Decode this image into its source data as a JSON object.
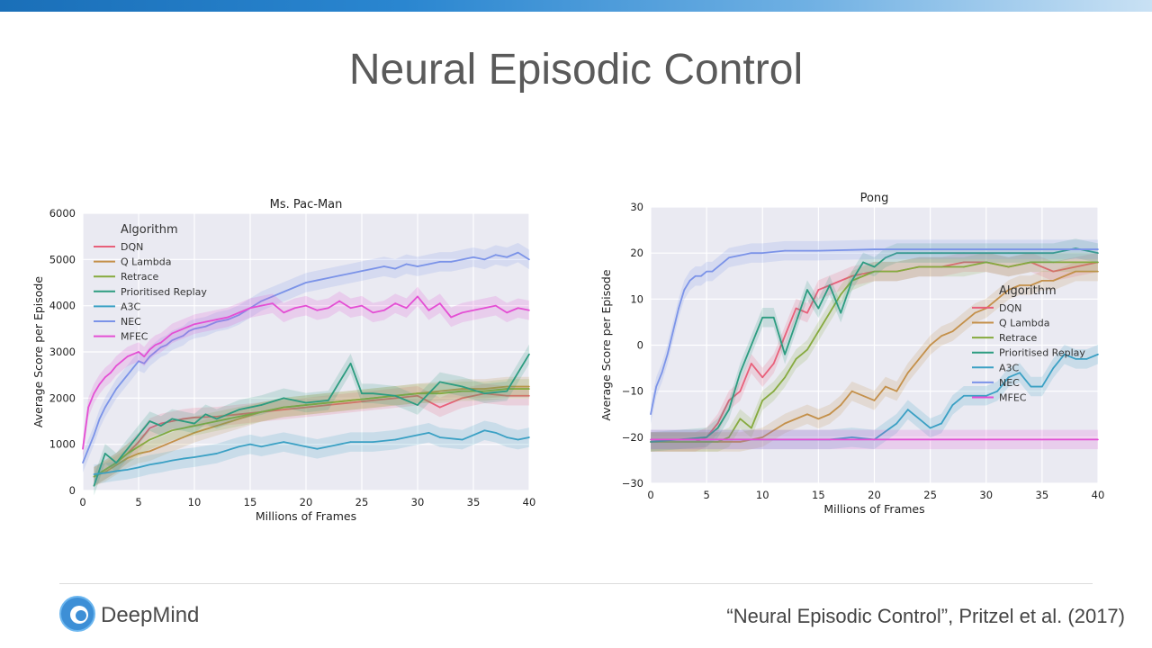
{
  "slide": {
    "title": "Neural Episodic Control",
    "logo_text": "DeepMind",
    "citation": "“Neural Episodic Control”, Pritzel et al. (2017)"
  },
  "chart_data": [
    {
      "type": "line",
      "title": "Ms. Pac-Man",
      "xlabel": "Millions of Frames",
      "ylabel": "Average Score per Episode",
      "xlim": [
        0,
        40
      ],
      "ylim": [
        0,
        6000
      ],
      "xticks": [
        0,
        5,
        10,
        15,
        20,
        25,
        30,
        35,
        40
      ],
      "yticks": [
        0,
        1000,
        2000,
        3000,
        4000,
        5000,
        6000
      ],
      "grid": true,
      "legend": {
        "title": "Algorithm",
        "position": "top-left"
      },
      "series": [
        {
          "name": "DQN",
          "color": "#e8607a",
          "x": [
            1,
            2,
            3,
            4,
            5,
            6,
            7,
            8,
            9,
            10,
            12,
            14,
            16,
            18,
            20,
            22,
            24,
            26,
            28,
            30,
            32,
            34,
            36,
            38,
            40
          ],
          "y": [
            300,
            450,
            600,
            800,
            1050,
            1350,
            1450,
            1500,
            1550,
            1580,
            1600,
            1650,
            1700,
            1750,
            1800,
            1850,
            1900,
            1950,
            2000,
            2050,
            1800,
            2000,
            2100,
            2050,
            2050
          ]
        },
        {
          "name": "Q Lambda",
          "color": "#c4904a",
          "x": [
            1,
            2,
            3,
            4,
            5,
            6,
            7,
            8,
            9,
            10,
            12,
            14,
            16,
            18,
            20,
            22,
            24,
            26,
            28,
            30,
            32,
            34,
            36,
            38,
            40
          ],
          "y": [
            300,
            400,
            550,
            700,
            800,
            850,
            950,
            1050,
            1150,
            1250,
            1400,
            1550,
            1700,
            1800,
            1850,
            1900,
            1950,
            2000,
            2050,
            2100,
            2150,
            2200,
            2200,
            2250,
            2250
          ]
        },
        {
          "name": "Retrace",
          "color": "#86aa3e",
          "x": [
            1,
            2,
            3,
            4,
            5,
            6,
            7,
            8,
            9,
            10,
            12,
            14,
            16,
            18,
            20,
            22,
            24,
            26,
            28,
            30,
            32,
            34,
            36,
            38,
            40
          ],
          "y": [
            300,
            450,
            600,
            800,
            950,
            1100,
            1200,
            1300,
            1350,
            1400,
            1500,
            1600,
            1700,
            1800,
            1850,
            1900,
            1950,
            2000,
            2050,
            2100,
            2100,
            2150,
            2150,
            2200,
            2200
          ]
        },
        {
          "name": "Prioritised Replay",
          "color": "#2c9c80",
          "x": [
            1,
            2,
            3,
            4,
            5,
            6,
            7,
            8,
            9,
            10,
            11,
            12,
            14,
            16,
            18,
            20,
            22,
            24,
            25,
            26,
            28,
            30,
            32,
            34,
            36,
            38,
            40
          ],
          "y": [
            100,
            800,
            600,
            900,
            1200,
            1500,
            1400,
            1550,
            1500,
            1450,
            1650,
            1550,
            1750,
            1850,
            2000,
            1900,
            1950,
            2750,
            2100,
            2100,
            2050,
            1850,
            2350,
            2250,
            2100,
            2150,
            2950
          ]
        },
        {
          "name": "A3C",
          "color": "#3aa0c4",
          "x": [
            1,
            2,
            3,
            4,
            5,
            6,
            7,
            8,
            9,
            10,
            12,
            14,
            15,
            16,
            17,
            18,
            19,
            20,
            21,
            22,
            24,
            26,
            28,
            30,
            31,
            32,
            34,
            35,
            36,
            37,
            38,
            39,
            40
          ],
          "y": [
            350,
            380,
            420,
            450,
            500,
            560,
            600,
            650,
            690,
            720,
            800,
            950,
            1000,
            950,
            1000,
            1050,
            1000,
            950,
            900,
            950,
            1050,
            1050,
            1100,
            1200,
            1250,
            1150,
            1100,
            1200,
            1300,
            1250,
            1150,
            1100,
            1150
          ]
        },
        {
          "name": "NEC",
          "color": "#7b93e8",
          "x": [
            0,
            0.5,
            1,
            1.5,
            2,
            2.5,
            3,
            3.5,
            4,
            4.5,
            5,
            5.5,
            6,
            6.5,
            7,
            7.5,
            8,
            8.5,
            9,
            9.5,
            10,
            11,
            12,
            13,
            14,
            15,
            16,
            17,
            18,
            19,
            20,
            21,
            22,
            23,
            24,
            25,
            26,
            27,
            28,
            29,
            30,
            31,
            32,
            33,
            34,
            35,
            36,
            37,
            38,
            39,
            40
          ],
          "y": [
            600,
            900,
            1200,
            1550,
            1800,
            2000,
            2200,
            2350,
            2500,
            2650,
            2800,
            2750,
            2900,
            3000,
            3100,
            3150,
            3250,
            3300,
            3350,
            3450,
            3500,
            3550,
            3650,
            3700,
            3800,
            3950,
            4100,
            4200,
            4300,
            4400,
            4500,
            4550,
            4600,
            4650,
            4700,
            4750,
            4800,
            4850,
            4800,
            4900,
            4850,
            4900,
            4950,
            4950,
            5000,
            5050,
            5000,
            5100,
            5050,
            5150,
            5000
          ]
        },
        {
          "name": "MFEC",
          "color": "#e44fd4",
          "x": [
            0,
            0.5,
            1,
            1.5,
            2,
            2.5,
            3,
            3.5,
            4,
            4.5,
            5,
            5.5,
            6,
            6.5,
            7,
            7.5,
            8,
            8.5,
            9,
            9.5,
            10,
            11,
            12,
            13,
            14,
            15,
            16,
            17,
            18,
            19,
            20,
            21,
            22,
            23,
            24,
            25,
            26,
            27,
            28,
            29,
            30,
            31,
            32,
            33,
            34,
            35,
            36,
            37,
            38,
            39,
            40
          ],
          "y": [
            900,
            1800,
            2100,
            2300,
            2450,
            2550,
            2700,
            2800,
            2900,
            2950,
            3000,
            2900,
            3050,
            3150,
            3200,
            3300,
            3400,
            3450,
            3500,
            3550,
            3600,
            3650,
            3700,
            3750,
            3850,
            3950,
            4000,
            4050,
            3850,
            3950,
            4000,
            3900,
            3950,
            4100,
            3950,
            4000,
            3850,
            3900,
            4050,
            3950,
            4200,
            3900,
            4050,
            3750,
            3850,
            3900,
            3950,
            4000,
            3850,
            3950,
            3900
          ]
        }
      ]
    },
    {
      "type": "line",
      "title": "Pong",
      "xlabel": "Millions of Frames",
      "ylabel": "Average Score per Episode",
      "xlim": [
        0,
        40
      ],
      "ylim": [
        -30,
        30
      ],
      "xticks": [
        0,
        5,
        10,
        15,
        20,
        25,
        30,
        35,
        40
      ],
      "yticks": [
        -30,
        -20,
        -10,
        0,
        10,
        20,
        30
      ],
      "grid": true,
      "legend": {
        "title": "Algorithm",
        "position": "center-right"
      },
      "series": [
        {
          "name": "DQN",
          "color": "#e8607a",
          "x": [
            0,
            2,
            4,
            5,
            6,
            7,
            8,
            9,
            10,
            11,
            12,
            13,
            14,
            15,
            16,
            18,
            20,
            22,
            24,
            26,
            28,
            30,
            32,
            34,
            36,
            38,
            40
          ],
          "y": [
            -21,
            -21,
            -21,
            -20,
            -17,
            -12,
            -10,
            -4,
            -7,
            -4,
            2,
            8,
            7,
            12,
            13,
            15,
            16,
            16,
            17,
            17,
            18,
            18,
            17,
            18,
            16,
            17,
            18
          ]
        },
        {
          "name": "Q Lambda",
          "color": "#c4904a",
          "x": [
            0,
            4,
            8,
            10,
            12,
            14,
            15,
            16,
            17,
            18,
            19,
            20,
            21,
            22,
            23,
            24,
            25,
            26,
            27,
            28,
            29,
            30,
            31,
            32,
            33,
            34,
            35,
            36,
            37,
            38,
            39,
            40
          ],
          "y": [
            -21,
            -21,
            -21,
            -20,
            -17,
            -15,
            -16,
            -15,
            -13,
            -10,
            -11,
            -12,
            -9,
            -10,
            -6,
            -3,
            0,
            2,
            3,
            5,
            7,
            8,
            10,
            12,
            13,
            13,
            14,
            14,
            15,
            16,
            16,
            16
          ]
        },
        {
          "name": "Retrace",
          "color": "#86aa3e",
          "x": [
            0,
            4,
            6,
            7,
            8,
            9,
            10,
            11,
            12,
            13,
            14,
            15,
            16,
            17,
            18,
            19,
            20,
            22,
            24,
            26,
            28,
            30,
            32,
            34,
            36,
            38,
            40
          ],
          "y": [
            -21,
            -21,
            -21,
            -20,
            -16,
            -18,
            -12,
            -10,
            -7,
            -3,
            -1,
            3,
            7,
            11,
            14,
            15,
            16,
            16,
            17,
            17,
            17,
            18,
            17,
            18,
            18,
            18,
            18
          ]
        },
        {
          "name": "Prioritised Replay",
          "color": "#2c9c80",
          "x": [
            0,
            5,
            6,
            7,
            8,
            9,
            10,
            11,
            12,
            13,
            14,
            15,
            16,
            17,
            18,
            19,
            20,
            21,
            22,
            23,
            24,
            26,
            28,
            30,
            32,
            34,
            36,
            38,
            40
          ],
          "y": [
            -21,
            -20,
            -18,
            -14,
            -6,
            0,
            6,
            6,
            -2,
            5,
            12,
            8,
            13,
            7,
            14,
            18,
            17,
            19,
            20,
            20,
            20,
            20,
            20,
            20,
            20,
            20,
            20,
            21,
            20
          ]
        },
        {
          "name": "A3C",
          "color": "#3aa0c4",
          "x": [
            0,
            16,
            18,
            20,
            22,
            23,
            24,
            25,
            26,
            27,
            28,
            30,
            31,
            32,
            33,
            34,
            35,
            36,
            37,
            38,
            39,
            40
          ],
          "y": [
            -20.5,
            -20.5,
            -20,
            -20.5,
            -17,
            -14,
            -16,
            -18,
            -17,
            -13,
            -11,
            -11,
            -10,
            -7,
            -6,
            -9,
            -9,
            -5,
            -2,
            -3,
            -3,
            -2
          ]
        },
        {
          "name": "NEC",
          "color": "#7b93e8",
          "x": [
            0,
            0.5,
            1,
            1.5,
            2,
            2.5,
            3,
            3.5,
            4,
            4.5,
            5,
            5.5,
            6,
            6.5,
            7,
            8,
            9,
            10,
            12,
            15,
            20,
            25,
            30,
            35,
            40
          ],
          "y": [
            -15,
            -9,
            -6,
            -2,
            3,
            8,
            12,
            14,
            15,
            15,
            16,
            16,
            17,
            18,
            19,
            19.5,
            20,
            20,
            20.5,
            20.5,
            20.8,
            20.8,
            20.8,
            20.8,
            20.8
          ]
        },
        {
          "name": "MFEC",
          "color": "#e44fd4",
          "x": [
            0,
            5,
            10,
            15,
            20,
            25,
            30,
            35,
            40
          ],
          "y": [
            -20.5,
            -20.5,
            -20.5,
            -20.5,
            -20.5,
            -20.5,
            -20.5,
            -20.5,
            -20.5
          ]
        }
      ]
    }
  ]
}
